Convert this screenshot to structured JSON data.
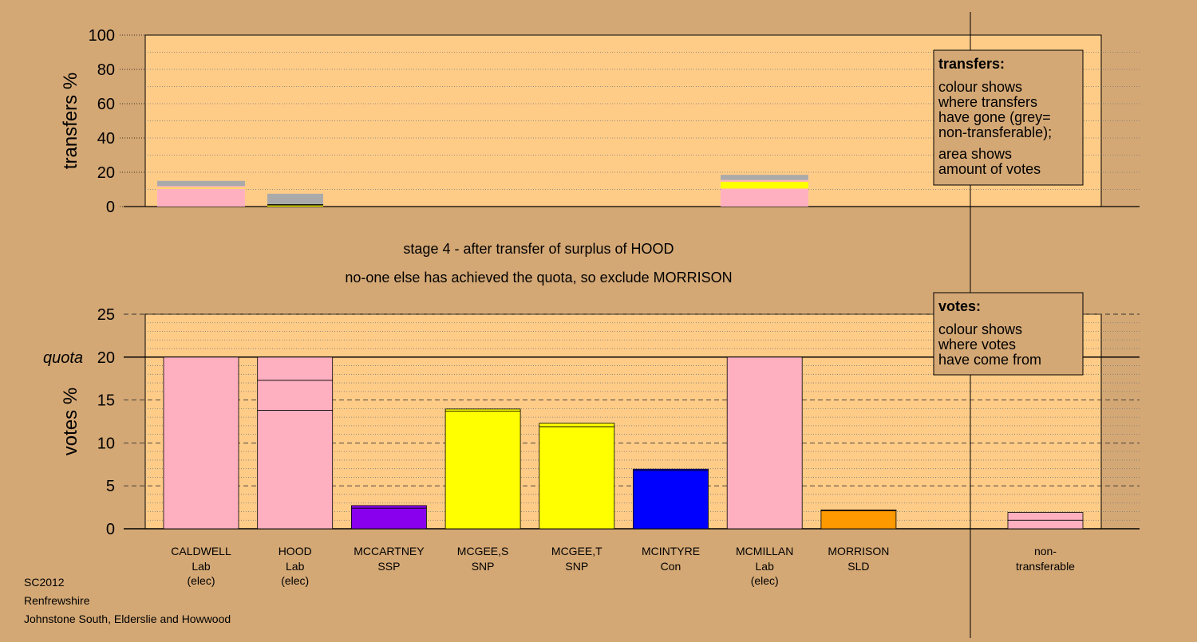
{
  "colors": {
    "background": "#d4a875",
    "plot_area": "#ffcc88",
    "legend_box": "#d4a875",
    "Lab": "#ffb0c0",
    "SSP": "#8800ee",
    "SNP": "#ffff00",
    "Con": "#0000ff",
    "SLD": "#ff9900",
    "non_transferable": "#aaaaaa"
  },
  "stage_text": {
    "line1": "stage 4 - after transfer of surplus of HOOD",
    "line2": "no-one else has achieved the quota, so exclude MORRISON"
  },
  "legend_transfers": {
    "title": "transfers:",
    "lines": [
      "colour shows",
      "where transfers",
      "have gone (grey=",
      "non-transferable);",
      "area shows",
      "amount of votes"
    ]
  },
  "legend_votes": {
    "title": "votes:",
    "lines": [
      "colour shows",
      "where votes",
      "have come from"
    ]
  },
  "footer": {
    "line1": "SC2012",
    "line2": "Renfrewshire",
    "line3": "Johnstone South, Elderslie and Howwood"
  },
  "chart_data": [
    {
      "type": "bar",
      "name": "transfers",
      "ylabel": "transfers %",
      "ylim": [
        0,
        100
      ],
      "yticks": [
        0,
        20,
        40,
        60,
        80,
        100
      ],
      "grid": "dotted",
      "bars": [
        {
          "candidate": "CALDWELL",
          "segments": [
            {
              "color": "Lab",
              "value": 10.5
            },
            {
              "color": "SNP",
              "value": 0.5
            },
            {
              "color": "Lab",
              "value": 1.0
            },
            {
              "color": "non_transferable",
              "value": 3.0
            }
          ]
        },
        {
          "candidate": "HOOD",
          "segments": [
            {
              "color": "SNP",
              "value": 1.0
            },
            {
              "color": "non_transferable",
              "value": 6.5
            }
          ]
        },
        {
          "candidate": "MCMILLAN",
          "segments": [
            {
              "color": "Lab",
              "value": 10.5
            },
            {
              "color": "SNP",
              "value": 4.0
            },
            {
              "color": "Lab",
              "value": 1.0
            },
            {
              "color": "non_transferable",
              "value": 3.0
            }
          ]
        }
      ]
    },
    {
      "type": "bar",
      "name": "votes",
      "ylabel": "votes %",
      "ylim": [
        0,
        25
      ],
      "yticks": [
        0,
        5,
        10,
        15,
        20,
        25
      ],
      "quota": 20,
      "quota_label": "quota",
      "grid": "dotted",
      "candidates": [
        {
          "name": "CALDWELL",
          "party": "Lab",
          "status": "(elec)",
          "segments": [
            {
              "color": "Lab",
              "value": 20
            }
          ]
        },
        {
          "name": "HOOD",
          "party": "Lab",
          "status": "(elec)",
          "segments": [
            {
              "color": "Lab",
              "value": 13.8
            },
            {
              "color": "Lab",
              "value": 3.5
            },
            {
              "color": "Lab",
              "value": 2.7
            }
          ]
        },
        {
          "name": "MCCARTNEY",
          "party": "SSP",
          "status": "",
          "segments": [
            {
              "color": "SSP",
              "value": 2.4
            },
            {
              "color": "SSP",
              "value": 0.3
            }
          ]
        },
        {
          "name": "MCGEE,S",
          "party": "SNP",
          "status": "",
          "segments": [
            {
              "color": "SNP",
              "value": 13.7
            },
            {
              "color": "SNP",
              "value": 0.25
            }
          ]
        },
        {
          "name": "MCGEE,T",
          "party": "SNP",
          "status": "",
          "segments": [
            {
              "color": "SNP",
              "value": 11.9
            },
            {
              "color": "SNP",
              "value": 0.4
            }
          ]
        },
        {
          "name": "MCINTYRE",
          "party": "Con",
          "status": "",
          "segments": [
            {
              "color": "Con",
              "value": 6.8
            },
            {
              "color": "Con",
              "value": 0.15
            }
          ]
        },
        {
          "name": "MCMILLAN",
          "party": "Lab",
          "status": "(elec)",
          "segments": [
            {
              "color": "Lab",
              "value": 20
            }
          ]
        },
        {
          "name": "MORRISON",
          "party": "SLD",
          "status": "",
          "segments": [
            {
              "color": "SLD",
              "value": 2.1
            },
            {
              "color": "SLD",
              "value": 0.1
            }
          ]
        }
      ],
      "non_transferable": {
        "label_line1": "non-",
        "label_line2": "transferable",
        "segments": [
          {
            "color": "Lab",
            "value": 1.0
          },
          {
            "color": "Lab",
            "value": 0.9
          }
        ]
      }
    }
  ]
}
